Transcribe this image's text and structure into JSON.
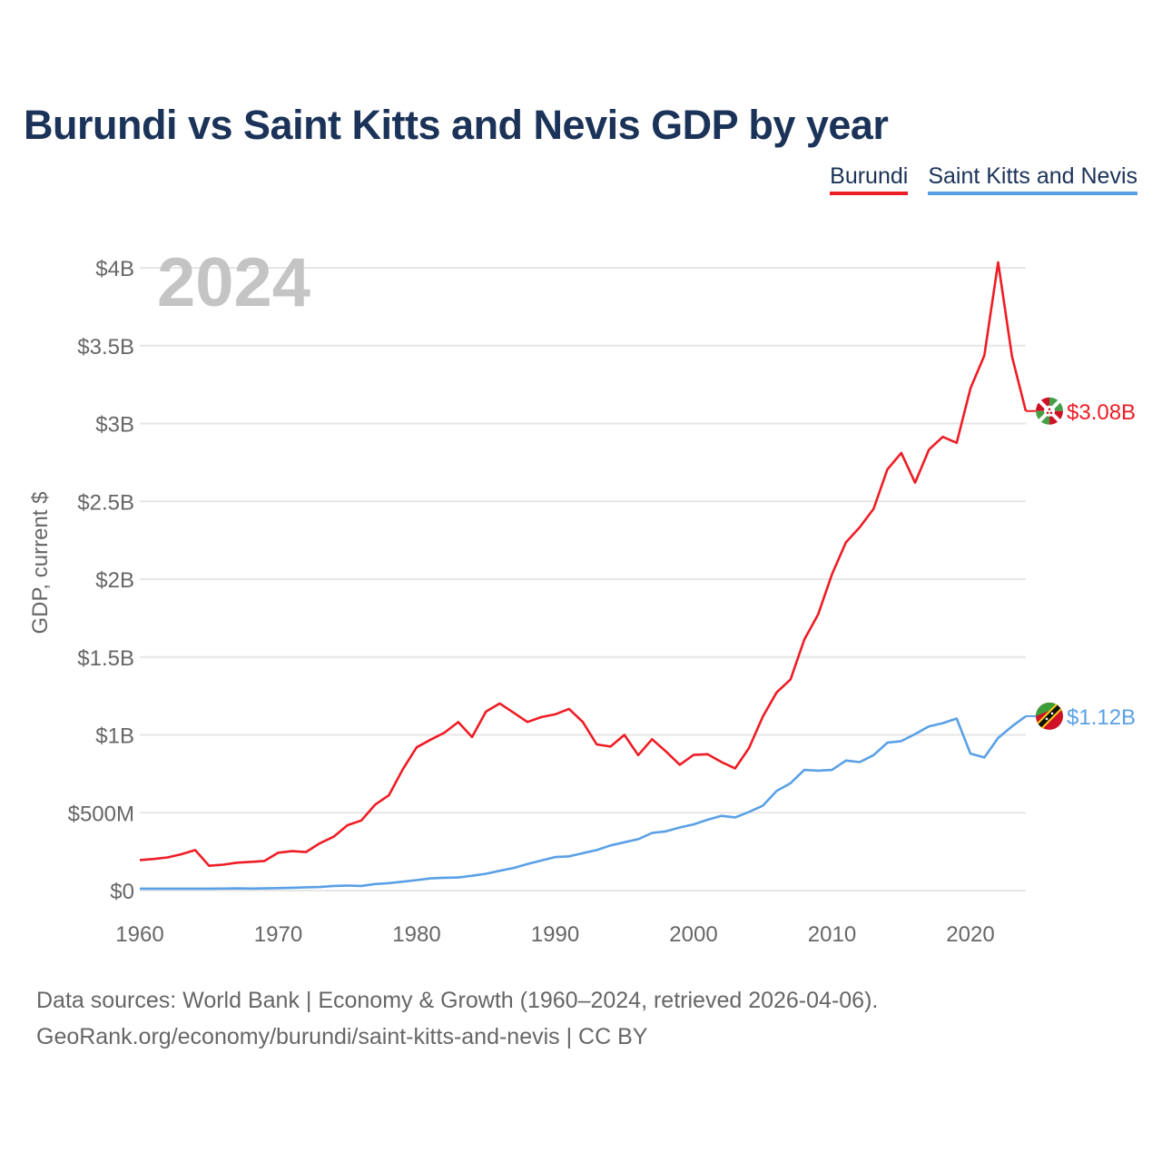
{
  "title": "Burundi vs Saint Kitts and Nevis GDP by year",
  "legend": {
    "burundi": "Burundi",
    "skn": "Saint Kitts and Nevis"
  },
  "source": {
    "line1": "Data sources: World Bank | Economy & Growth (1960–2024, retrieved 2026-04-06).",
    "line2": "GeoRank.org/economy/burundi/saint-kitts-and-nevis | CC BY"
  },
  "chart_data": {
    "type": "line",
    "title": "Burundi vs Saint Kitts and Nevis GDP by year",
    "ylabel": "GDP, current $",
    "xlabel": "",
    "year_label": "2024",
    "x_ticks": [
      1960,
      1970,
      1980,
      1990,
      2000,
      2010,
      2020
    ],
    "x_tick_labels": [
      "1960",
      "1970",
      "1980",
      "1990",
      "2000",
      "2010",
      "2020"
    ],
    "y_ticks": [
      0,
      0.5,
      1,
      1.5,
      2,
      2.5,
      3,
      3.5,
      4
    ],
    "y_tick_labels": [
      "$0",
      "$500M",
      "$1B",
      "$1.5B",
      "$2B",
      "$2.5B",
      "$3B",
      "$3.5B",
      "$4B"
    ],
    "xlim": [
      1960,
      2024
    ],
    "ylim": [
      0,
      4
    ],
    "y_unit": "billion USD",
    "colors": {
      "burundi": "#ee1c25",
      "skn": "#5aa0e6",
      "grid": "#e6e6e6",
      "axis_text": "#666666",
      "year_text": "#c4c4c4"
    },
    "years": [
      1960,
      1961,
      1962,
      1963,
      1964,
      1965,
      1966,
      1967,
      1968,
      1969,
      1970,
      1971,
      1972,
      1973,
      1974,
      1975,
      1976,
      1977,
      1978,
      1979,
      1980,
      1981,
      1982,
      1983,
      1984,
      1985,
      1986,
      1987,
      1988,
      1989,
      1990,
      1991,
      1992,
      1993,
      1994,
      1995,
      1996,
      1997,
      1998,
      1999,
      2000,
      2001,
      2002,
      2003,
      2004,
      2005,
      2006,
      2007,
      2008,
      2009,
      2010,
      2011,
      2012,
      2013,
      2014,
      2015,
      2016,
      2017,
      2018,
      2019,
      2020,
      2021,
      2022,
      2023,
      2024
    ],
    "series": [
      {
        "name": "Burundi",
        "key": "burundi",
        "end_label": "$3.08B",
        "values": [
          0.196,
          0.203,
          0.213,
          0.233,
          0.26,
          0.159,
          0.166,
          0.179,
          0.184,
          0.19,
          0.243,
          0.253,
          0.247,
          0.304,
          0.346,
          0.42,
          0.45,
          0.552,
          0.613,
          0.78,
          0.92,
          0.969,
          1.014,
          1.082,
          0.986,
          1.149,
          1.202,
          1.142,
          1.083,
          1.114,
          1.132,
          1.167,
          1.083,
          0.939,
          0.925,
          1.0,
          0.87,
          0.972,
          0.894,
          0.808,
          0.871,
          0.876,
          0.826,
          0.785,
          0.915,
          1.117,
          1.273,
          1.356,
          1.612,
          1.775,
          2.032,
          2.236,
          2.333,
          2.452,
          2.705,
          2.811,
          2.62,
          2.832,
          2.914,
          2.876,
          3.225,
          3.437,
          4.035,
          3.43,
          3.08
        ]
      },
      {
        "name": "Saint Kitts and Nevis",
        "key": "skn",
        "end_label": "$1.12B",
        "values": [
          0.012,
          0.012,
          0.012,
          0.012,
          0.012,
          0.012,
          0.013,
          0.014,
          0.013,
          0.014,
          0.016,
          0.018,
          0.021,
          0.023,
          0.03,
          0.032,
          0.03,
          0.042,
          0.048,
          0.057,
          0.067,
          0.078,
          0.082,
          0.084,
          0.095,
          0.108,
          0.127,
          0.145,
          0.17,
          0.193,
          0.215,
          0.22,
          0.24,
          0.26,
          0.29,
          0.31,
          0.33,
          0.37,
          0.38,
          0.405,
          0.425,
          0.455,
          0.48,
          0.47,
          0.505,
          0.545,
          0.64,
          0.69,
          0.775,
          0.77,
          0.775,
          0.835,
          0.825,
          0.87,
          0.95,
          0.96,
          1.005,
          1.055,
          1.075,
          1.105,
          0.88,
          0.855,
          0.98,
          1.055,
          1.12
        ]
      }
    ]
  }
}
